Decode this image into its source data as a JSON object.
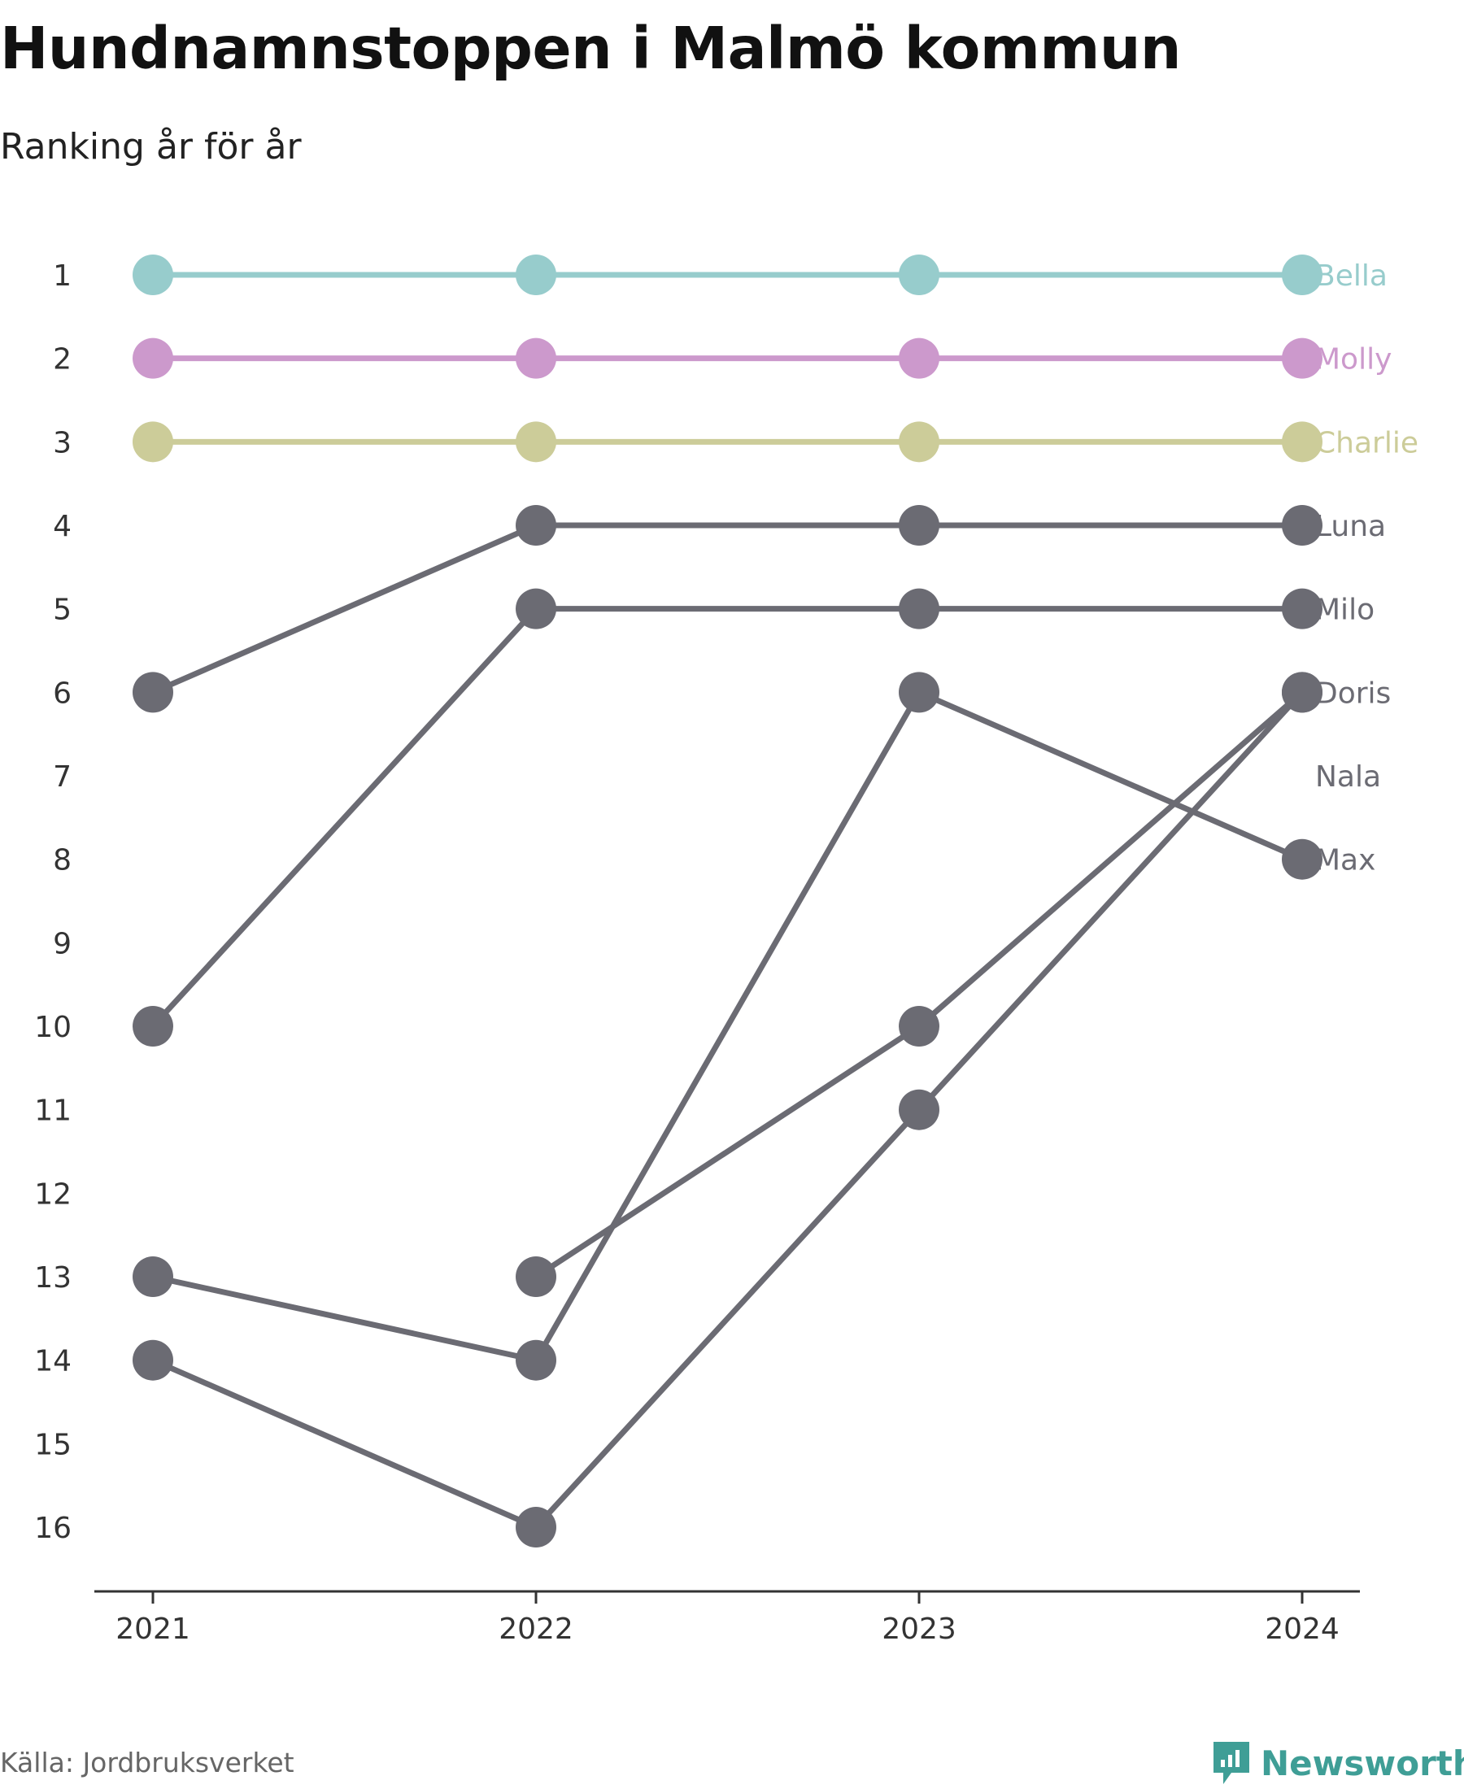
{
  "header": {
    "title": "Hundnamnstoppen i Malmö kommun",
    "subtitle": "Ranking år för år"
  },
  "footer": {
    "source": "Källa: Jordbruksverket",
    "brand": "Newsworthy",
    "brand_color": "#3f9e96"
  },
  "chart_data": {
    "type": "line",
    "title": "Hundnamnstoppen i Malmö kommun",
    "subtitle": "Ranking år för år",
    "x": [
      "2021",
      "2022",
      "2023",
      "2024"
    ],
    "y_ticks": [
      1,
      2,
      3,
      4,
      5,
      6,
      7,
      8,
      9,
      10,
      11,
      12,
      13,
      14,
      15,
      16
    ],
    "ylim": [
      16,
      1
    ],
    "y_reversed": true,
    "grid": false,
    "legend": "direct labels at right end",
    "series": [
      {
        "name": "Bella",
        "values": [
          1,
          1,
          1,
          1
        ],
        "color": "#97cccc",
        "label_color": "#97cccc"
      },
      {
        "name": "Molly",
        "values": [
          2,
          2,
          2,
          2
        ],
        "color": "#cc99cc",
        "label_color": "#cc99cc"
      },
      {
        "name": "Charlie",
        "values": [
          3,
          3,
          3,
          3
        ],
        "color": "#cccc99",
        "label_color": "#cccc99"
      },
      {
        "name": "Luna",
        "values": [
          6,
          4,
          4,
          4
        ],
        "color": "#6b6b73",
        "label_color": "#6b6b73"
      },
      {
        "name": "Milo",
        "values": [
          10,
          5,
          5,
          5
        ],
        "color": "#6b6b73",
        "label_color": "#6b6b73"
      },
      {
        "name": "Doris",
        "values": [
          null,
          13,
          10,
          6
        ],
        "color": "#6b6b73",
        "label_color": "#6b6b73"
      },
      {
        "name": "Nala",
        "values": [
          14,
          16,
          11,
          6
        ],
        "color": "#6b6b73",
        "label_color": "#6b6b73"
      },
      {
        "name": "Max",
        "values": [
          13,
          14,
          6,
          8
        ],
        "color": "#6b6b73",
        "label_color": "#6b6b73"
      }
    ]
  }
}
